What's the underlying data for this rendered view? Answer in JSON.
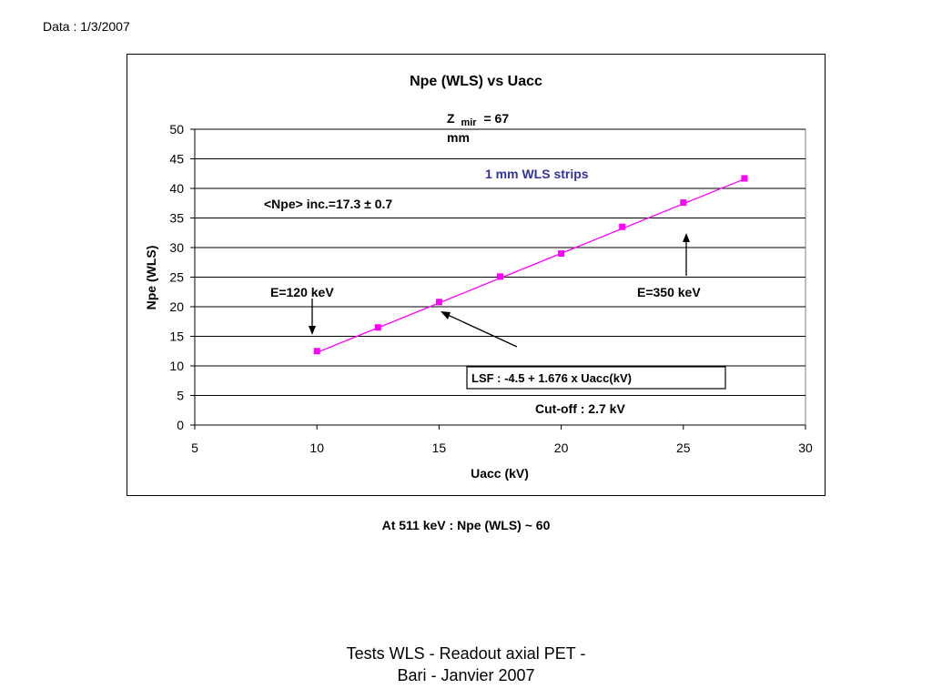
{
  "header": {
    "date": "Data : 1/3/2007"
  },
  "chart_data": {
    "type": "scatter",
    "title": "Npe (WLS) vs Uacc",
    "xlabel": "Uacc (kV)",
    "ylabel": "Npe (WLS)",
    "xlim": [
      5,
      30
    ],
    "ylim": [
      0,
      50
    ],
    "xticks": [
      5,
      10,
      15,
      20,
      25,
      30
    ],
    "yticks": [
      0,
      5,
      10,
      15,
      20,
      25,
      30,
      35,
      40,
      45,
      50
    ],
    "grid": "horizontal",
    "series": [
      {
        "color": "#ff00ff",
        "marker": "square",
        "x": [
          10,
          12.5,
          15,
          17.5,
          20,
          22.5,
          25,
          27.5
        ],
        "y": [
          12.5,
          16.5,
          20.8,
          25.1,
          29.0,
          33.5,
          37.6,
          41.7
        ]
      }
    ],
    "fit": {
      "intercept": -4.5,
      "slope": 1.676,
      "x_range": [
        10,
        27.5
      ],
      "color": "#ff00ff"
    },
    "annotations": {
      "zmir_main": "Z",
      "zmir_sub": "mir",
      "zmir_value": "= 67",
      "zmir_unit": "mm",
      "strips": "1 mm WLS strips",
      "npe_inc": "<Npe> inc.=17.3 ± 0.7",
      "e120": "E=120 keV",
      "e350": "E=350 keV",
      "lsf": "LSF : -4.5 + 1.676 x Uacc(kV)",
      "cutoff": "Cut-off : 2.7 kV"
    },
    "colors": {
      "strips_text": "#333399",
      "grid": "#000000"
    }
  },
  "footnote": "At  511 keV  : Npe (WLS) ~ 60",
  "footer": {
    "line1": "Tests WLS - Readout axial PET -",
    "line2": "Bari - Janvier 2007"
  }
}
